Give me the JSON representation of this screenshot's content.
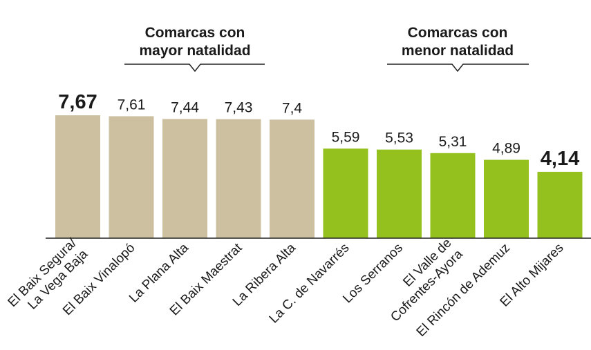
{
  "chart_data": {
    "type": "bar",
    "annotations": [
      "Comarcas con\nmayor natalidad",
      "Comarcas con\nmenor natalidad"
    ],
    "categories": [
      "El Baix Segura/\nLa Vega Baja",
      "El Baix Vinalopó",
      "La Plana Alta",
      "El Baix Maestrat",
      "La Ribera Alta",
      "La C. de Navarrés",
      "Los Serranos",
      "El Valle de\nCofrentes-Ayora",
      "El Rincón de Ademuz",
      "El Alto Mijares"
    ],
    "values": [
      7.67,
      7.61,
      7.44,
      7.43,
      7.4,
      5.59,
      5.53,
      5.31,
      4.89,
      4.14
    ],
    "value_labels": [
      "7,67",
      "7,61",
      "7,44",
      "7,43",
      "7,4",
      "5,59",
      "5,53",
      "5,31",
      "4,89",
      "4,14"
    ],
    "colors": [
      "#cdc0a0",
      "#cdc0a0",
      "#cdc0a0",
      "#cdc0a0",
      "#cdc0a0",
      "#95c11f",
      "#95c11f",
      "#95c11f",
      "#95c11f",
      "#95c11f"
    ]
  }
}
